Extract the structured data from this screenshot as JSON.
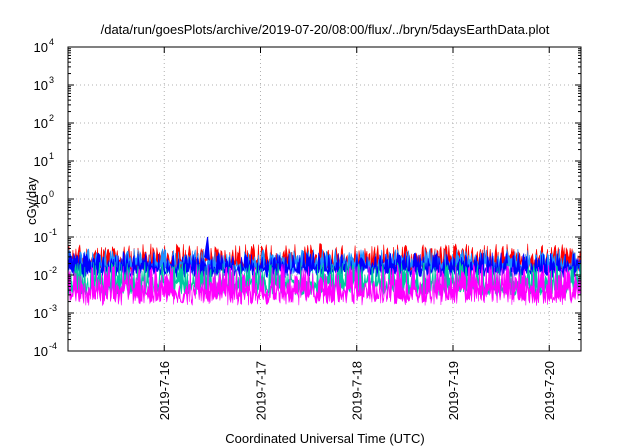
{
  "chart_data": {
    "type": "area",
    "title": "/data/run/goesPlots/archive/2019-07-20/08:00/flux/../bryn/5daysEarthData.plot",
    "xlabel": "Coordinated Universal Time (UTC)",
    "ylabel": "cGy/day",
    "yscale": "log",
    "ylim_exponents": [
      -4,
      4
    ],
    "y_tick_base": "10",
    "y_tick_exponents": [
      "-4",
      "-3",
      "-2",
      "-1",
      "0",
      "1",
      "2",
      "3",
      "4"
    ],
    "x_tick_labels": [
      "2019-7-16",
      "2019-7-17",
      "2019-7-18",
      "2019-7-19",
      "2019-7-20"
    ],
    "xlim_days": [
      0.0,
      5.33
    ],
    "x_tick_days": [
      1,
      2,
      3,
      4,
      5
    ],
    "grid": true,
    "series": [
      {
        "color": "#ff0000",
        "level": 0.03,
        "noise": 0.35,
        "seed": 11
      },
      {
        "color": "#1e90ff",
        "level": 0.025,
        "noise": 0.3,
        "seed": 23
      },
      {
        "color": "#0000ff",
        "level": 0.02,
        "noise": 0.3,
        "seed": 37
      },
      {
        "color": "#00c8a0",
        "level": 0.008,
        "noise": 0.45,
        "seed": 51
      },
      {
        "color": "#ff00ff",
        "level": 0.0055,
        "noise": 0.55,
        "seed": 67
      }
    ],
    "spike": {
      "day": 1.45,
      "value": 0.1,
      "color": "#0000ff"
    }
  }
}
